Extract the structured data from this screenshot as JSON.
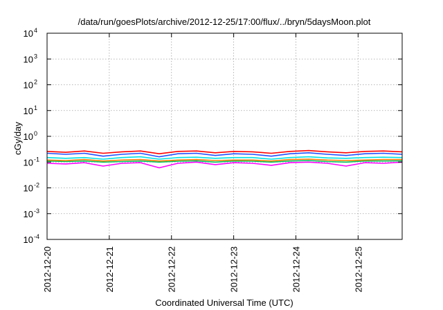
{
  "chart_data": {
    "type": "line",
    "title": "/data/run/goesPlots/archive/2012-12-25/17:00/flux/../bryn/5daysMoon.plot",
    "xlabel": "Coordinated Universal Time (UTC)",
    "ylabel": "cGy/day",
    "yscale": "log",
    "ylim": [
      0.0001,
      10000
    ],
    "xlim": [
      "2012-12-20",
      "2012-12-25T17:00"
    ],
    "grid": true,
    "legend": "none",
    "y_ticks": [
      {
        "base": "10",
        "exp": "-4"
      },
      {
        "base": "10",
        "exp": "-3"
      },
      {
        "base": "10",
        "exp": "-2"
      },
      {
        "base": "10",
        "exp": "-1"
      },
      {
        "base": "10",
        "exp": "0"
      },
      {
        "base": "10",
        "exp": "1"
      },
      {
        "base": "10",
        "exp": "2"
      },
      {
        "base": "10",
        "exp": "3"
      },
      {
        "base": "10",
        "exp": "4"
      }
    ],
    "x_ticks": [
      "2012-12-20",
      "2012-12-21",
      "2012-12-22",
      "2012-12-23",
      "2012-12-24",
      "2012-12-25"
    ],
    "series": [
      {
        "color": "#ff00ff",
        "values": [
          0.09,
          0.085,
          0.095,
          0.07,
          0.09,
          0.095,
          0.06,
          0.09,
          0.1,
          0.08,
          0.095,
          0.09,
          0.075,
          0.095,
          0.1,
          0.09,
          0.07,
          0.095,
          0.09,
          0.1
        ]
      },
      {
        "color": "#00c060",
        "values": [
          0.11,
          0.105,
          0.11,
          0.1,
          0.105,
          0.11,
          0.1,
          0.108,
          0.112,
          0.1,
          0.11,
          0.108,
          0.1,
          0.11,
          0.115,
          0.105,
          0.1,
          0.11,
          0.11,
          0.112
        ]
      },
      {
        "color": "#ff8000",
        "values": [
          0.12,
          0.115,
          0.125,
          0.11,
          0.12,
          0.125,
          0.11,
          0.12,
          0.125,
          0.115,
          0.12,
          0.12,
          0.11,
          0.125,
          0.13,
          0.12,
          0.115,
          0.12,
          0.125,
          0.125
        ]
      },
      {
        "color": "#00e0e0",
        "values": [
          0.15,
          0.14,
          0.15,
          0.13,
          0.15,
          0.16,
          0.13,
          0.15,
          0.155,
          0.14,
          0.15,
          0.15,
          0.13,
          0.15,
          0.16,
          0.145,
          0.14,
          0.15,
          0.155,
          0.15
        ]
      },
      {
        "color": "#2050ff",
        "values": [
          0.22,
          0.2,
          0.22,
          0.17,
          0.2,
          0.22,
          0.16,
          0.21,
          0.22,
          0.18,
          0.21,
          0.2,
          0.17,
          0.21,
          0.23,
          0.2,
          0.18,
          0.21,
          0.22,
          0.2
        ]
      },
      {
        "color": "#ff0000",
        "values": [
          0.26,
          0.24,
          0.27,
          0.22,
          0.25,
          0.27,
          0.21,
          0.26,
          0.27,
          0.23,
          0.26,
          0.25,
          0.22,
          0.26,
          0.28,
          0.25,
          0.23,
          0.26,
          0.27,
          0.25
        ]
      }
    ]
  }
}
